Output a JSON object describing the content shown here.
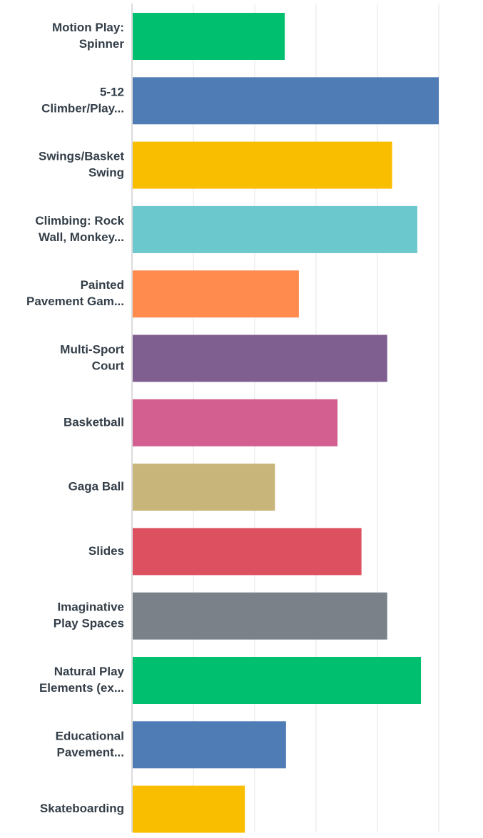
{
  "chart_data": {
    "type": "bar",
    "orientation": "horizontal",
    "categories": [
      [
        "Motion Play:",
        "Spinner"
      ],
      [
        "5-12",
        "Climber/Play..."
      ],
      [
        "Swings/Basket",
        "Swing"
      ],
      [
        "Climbing: Rock",
        "Wall, Monkey..."
      ],
      [
        "Painted",
        "Pavement Gam..."
      ],
      [
        "Multi-Sport",
        "Court"
      ],
      [
        "Basketball"
      ],
      [
        "Gaga Ball"
      ],
      [
        "Slides"
      ],
      [
        "Imaginative",
        "Play Spaces"
      ],
      [
        "Natural Play",
        "Elements (ex..."
      ],
      [
        "Educational",
        "Pavement..."
      ],
      [
        "Skateboarding"
      ]
    ],
    "values": [
      2.49,
      5.0,
      4.24,
      4.65,
      2.72,
      4.16,
      3.35,
      2.33,
      3.74,
      4.16,
      4.71,
      2.51,
      1.84
    ],
    "xlim": [
      0,
      5
    ],
    "grid": true,
    "colors": [
      "#00bf6f",
      "#507cb6",
      "#f9be00",
      "#6bc8cd",
      "#ff8b4f",
      "#7f5f90",
      "#d25f90",
      "#c8b579",
      "#dc5060",
      "#7a8188",
      "#00bf6f",
      "#507cb6",
      "#f9be00"
    ],
    "title": "",
    "xlabel": "",
    "ylabel": ""
  }
}
